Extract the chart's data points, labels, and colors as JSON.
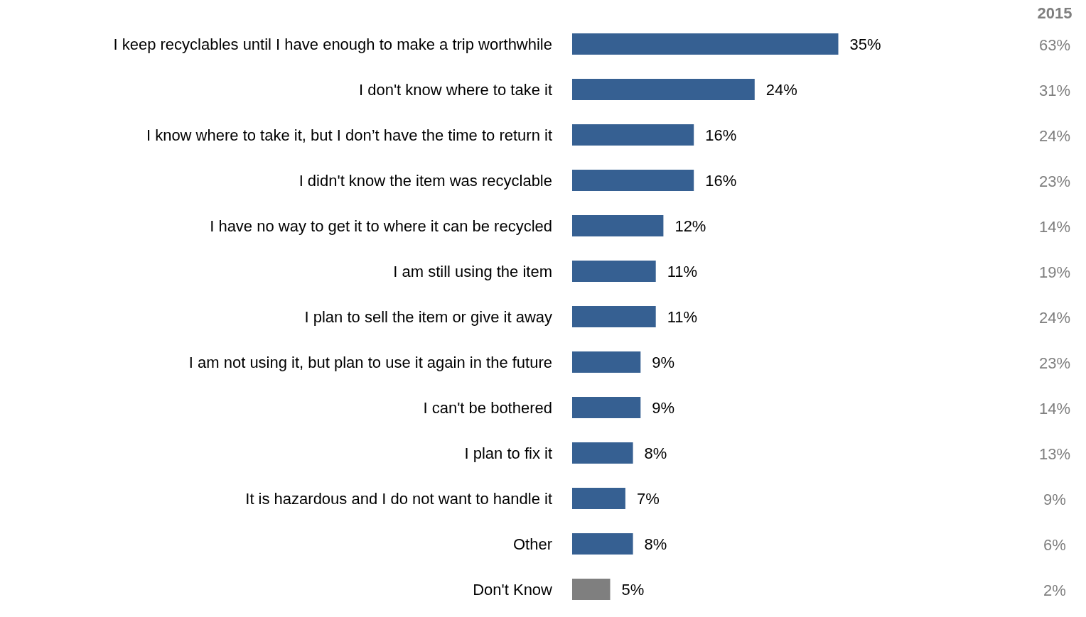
{
  "chart_data": [
    {
      "type": "bar",
      "orientation": "horizontal",
      "categories": [
        "I keep recyclables until I have enough to make a trip worthwhile",
        "I don't know where to take it",
        "I know where to take it, but I don’t have the time to return it",
        "I didn't know the item was recyclable",
        "I have no way to get it to where it can be recycled",
        "I am still using the item",
        "I plan to sell the item or give it away",
        "I am not using it, but plan to use it again in the future",
        "I can't be bothered",
        "I plan to fix it",
        "It is hazardous and I do not want to handle it",
        "Other",
        "Don't Know"
      ],
      "values": [
        35,
        24,
        16,
        16,
        12,
        11,
        11,
        9,
        9,
        8,
        7,
        8,
        5
      ],
      "colors": [
        "#366092",
        "#366092",
        "#366092",
        "#366092",
        "#366092",
        "#366092",
        "#366092",
        "#366092",
        "#366092",
        "#366092",
        "#366092",
        "#366092",
        "#7f7f7f"
      ],
      "value_labels": [
        "35%",
        "24%",
        "16%",
        "16%",
        "12%",
        "11%",
        "11%",
        "9%",
        "9%",
        "8%",
        "7%",
        "8%",
        "5%"
      ]
    },
    {
      "type": "other",
      "title": "2015",
      "annotations": [
        "63%",
        "31%",
        "24%",
        "23%",
        "14%",
        "19%",
        "24%",
        "23%",
        "14%",
        "13%",
        "9%",
        "6%",
        "2%"
      ]
    }
  ]
}
